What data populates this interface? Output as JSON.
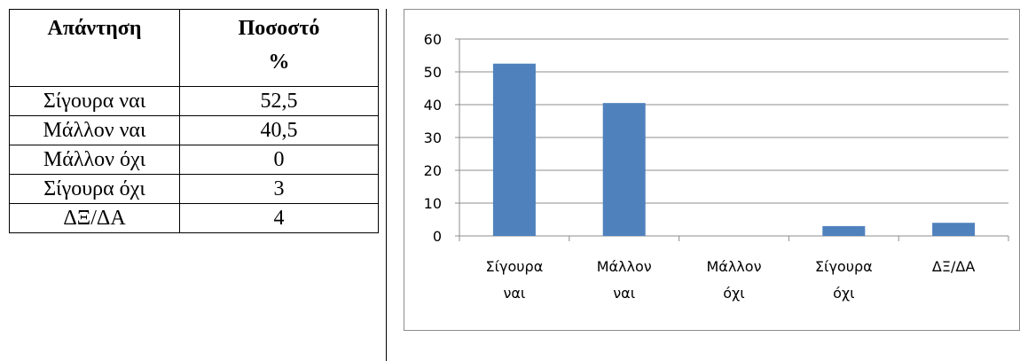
{
  "table": {
    "header": {
      "col1": "Απάντηση",
      "col2_line1": "Ποσοστό",
      "col2_line2": "%"
    },
    "rows": [
      {
        "answer": "Σίγουρα  ναι",
        "percent": "52,5"
      },
      {
        "answer": "Μάλλον  ναι",
        "percent": "40,5"
      },
      {
        "answer": "Μάλλον  όχι",
        "percent": "0"
      },
      {
        "answer": "Σίγουρα  όχι",
        "percent": "3"
      },
      {
        "answer": "ΔΞ/ΔΑ",
        "percent": "4"
      }
    ]
  },
  "chart_data": {
    "type": "bar",
    "categories": [
      [
        "Σίγουρα",
        "ναι"
      ],
      [
        "Μάλλον",
        "ναι"
      ],
      [
        "Μάλλον",
        "όχι"
      ],
      [
        "Σίγουρα",
        "όχι"
      ],
      [
        "ΔΞ/ΔΑ"
      ]
    ],
    "values": [
      52.5,
      40.5,
      0,
      3,
      4
    ],
    "ylim": [
      0,
      60
    ],
    "yticks": [
      0,
      10,
      20,
      30,
      40,
      50,
      60
    ],
    "grid": true,
    "legend": "none",
    "bar_color": "#4f81bd",
    "grid_color": "#8c8c8c"
  }
}
